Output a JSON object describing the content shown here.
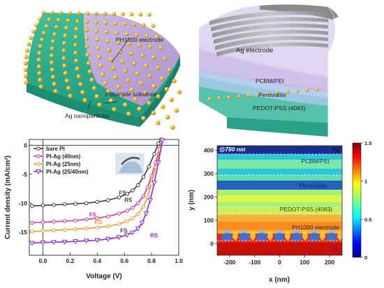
{
  "panel_a": {
    "labels": {
      "electrode": "PH1000 electrode",
      "substrate": "Polyimide substrate",
      "particles": "Ag nanoparticles"
    },
    "colors": {
      "substrate_top": "#2fae8f",
      "substrate_side": "#21967c",
      "electrode": "#c9a6dd",
      "particle": "#e3b21b"
    }
  },
  "panel_b": {
    "labels": {
      "ag": "Ag electrode",
      "pcbm": "PCBM/PEI",
      "perovskite": "Perovskite",
      "pedot": "PEDOT∶PSS (4083)"
    },
    "colors": {
      "ag": "#9a9a9a",
      "pcbm": "#b7a3d8",
      "perovskite": "#c9b8e6",
      "pedot": "#b5d0ea",
      "substrate": "#2fa98d"
    }
  },
  "chart_jv": {
    "chart_data": {
      "type": "line",
      "xlabel": "Voltage (V)",
      "ylabel": "Current density (mA/cm²)",
      "xlim": [
        -0.1,
        1.0
      ],
      "ylim": [
        -19,
        1
      ],
      "x_ticks": [
        "0.0",
        "0.2",
        "0.4",
        "0.6",
        "0.8",
        "1.0"
      ],
      "y_ticks": [
        "0",
        "-5",
        "-10",
        "-15"
      ],
      "series": [
        {
          "name": "bare PI",
          "color": "#3a3a3a",
          "marker": "circle-open",
          "x": [
            -0.08,
            0.0,
            0.08,
            0.16,
            0.24,
            0.32,
            0.4,
            0.48,
            0.56,
            0.62,
            0.66,
            0.7,
            0.74,
            0.78,
            0.82,
            0.85,
            0.87
          ],
          "y": [
            -10.5,
            -10.4,
            -10.3,
            -10.2,
            -10.1,
            -10.0,
            -9.8,
            -9.5,
            -9.0,
            -8.4,
            -7.8,
            -6.9,
            -5.5,
            -3.7,
            -1.5,
            0.3,
            1.0
          ]
        },
        {
          "name": "PI-Ag (40nm)",
          "color": "#e0309a",
          "marker": "circle-open",
          "x": [
            -0.08,
            0.0,
            0.08,
            0.16,
            0.24,
            0.32,
            0.4,
            0.48,
            0.56,
            0.62,
            0.66,
            0.7,
            0.74,
            0.77,
            0.8,
            0.83,
            0.86,
            0.88
          ],
          "y": [
            -13.4,
            -13.3,
            -13.2,
            -13.1,
            -13.0,
            -12.8,
            -12.6,
            -12.3,
            -11.8,
            -11.3,
            -10.8,
            -10.0,
            -8.8,
            -7.3,
            -5.3,
            -3.0,
            -0.5,
            1.0
          ]
        },
        {
          "name": "PI-Ag (25nm)",
          "color": "#f39a24",
          "marker": "circle-open",
          "x": [
            -0.08,
            0.0,
            0.08,
            0.16,
            0.24,
            0.32,
            0.4,
            0.48,
            0.56,
            0.62,
            0.66,
            0.7,
            0.74,
            0.77,
            0.8,
            0.83,
            0.86,
            0.88
          ],
          "y": [
            -14.9,
            -14.8,
            -14.7,
            -14.6,
            -14.5,
            -14.4,
            -14.2,
            -14.0,
            -13.6,
            -13.1,
            -12.6,
            -11.9,
            -10.6,
            -9.0,
            -6.6,
            -3.8,
            -0.8,
            1.0
          ]
        },
        {
          "name": "PI-Ag (25/40nm)",
          "color": "#8a2be2",
          "marker": "triangle",
          "x": [
            -0.08,
            0.0,
            0.08,
            0.16,
            0.24,
            0.32,
            0.4,
            0.48,
            0.56,
            0.62,
            0.66,
            0.7,
            0.73,
            0.76,
            0.79,
            0.82,
            0.85,
            0.88
          ],
          "y": [
            -16.9,
            -16.8,
            -16.75,
            -16.7,
            -16.6,
            -16.5,
            -16.4,
            -16.2,
            -15.9,
            -15.5,
            -15.1,
            -14.4,
            -13.4,
            -11.8,
            -9.5,
            -6.5,
            -3.0,
            0.8
          ]
        }
      ],
      "annotations": [
        {
          "text": "FS",
          "x": 0.56,
          "y": -8.6,
          "color": "#3a3a3a"
        },
        {
          "text": "RS",
          "x": 0.6,
          "y": -9.8,
          "color": "#3a3a3a"
        },
        {
          "text": "FS",
          "x": 0.34,
          "y": -12.3,
          "color": "#e0309a"
        },
        {
          "text": "RS",
          "x": 0.38,
          "y": -13.6,
          "color": "#f39a24"
        },
        {
          "text": "FS",
          "x": 0.57,
          "y": -15.1,
          "color": "#3a3a3a"
        },
        {
          "text": "RS",
          "x": 0.79,
          "y": -15.9,
          "color": "#8a2be2"
        }
      ],
      "legend_position": "upper-left"
    }
  },
  "chart_field": {
    "chart_data": {
      "type": "heatmap",
      "xlabel": "x (nm)",
      "ylabel": "y (nm)",
      "xlim": [
        -250,
        250
      ],
      "ylim": [
        -50,
        420
      ],
      "x_ticks": [
        "-200",
        "-100",
        "0",
        "100",
        "200"
      ],
      "y_ticks": [
        "0",
        "100",
        "200",
        "300",
        "400"
      ],
      "colorbar": {
        "min": 0,
        "max": 1.5,
        "ticks": [
          "1.5",
          "1",
          "0.5",
          "0"
        ]
      },
      "wavelength_label": "@780 nm",
      "layers": [
        {
          "name": "Ag",
          "y_range": [
            390,
            420
          ]
        },
        {
          "name": "PCBM/PEI",
          "y_range": [
            280,
            390
          ]
        },
        {
          "name": "Perovskite",
          "y_range": [
            110,
            280
          ]
        },
        {
          "name": "PEDOT∶PSS (4083)",
          "y_range": [
            100,
            110
          ]
        },
        {
          "name": "PH1000 electrode",
          "y_range": [
            10,
            100
          ]
        },
        {
          "name": "PI",
          "y_range": [
            -50,
            10
          ]
        }
      ]
    }
  }
}
